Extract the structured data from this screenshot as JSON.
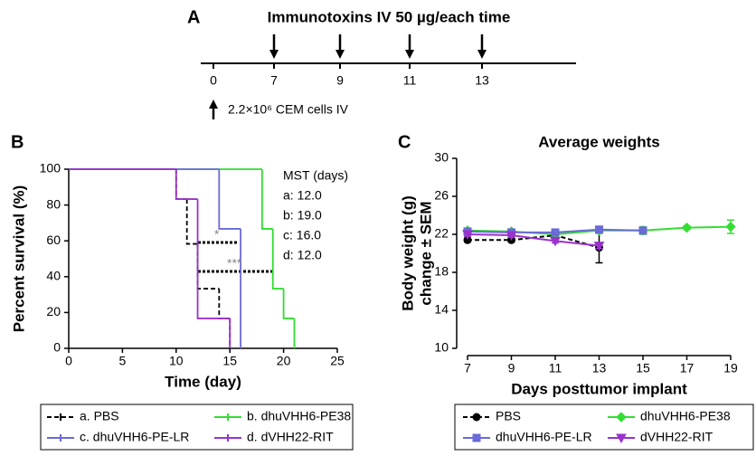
{
  "timeline": {
    "panel_label": "A",
    "title": "Immunotoxins IV 50 µg/each time",
    "days": [
      0,
      7,
      9,
      11,
      13
    ],
    "cells_note": "2.2×10⁶ CEM cells IV"
  },
  "chart_data": [
    {
      "type": "step",
      "panel_label": "B",
      "xlabel": "Time (day)",
      "ylabel": "Percent survival (%)",
      "xlim": [
        0,
        25
      ],
      "xticks": [
        0,
        5,
        10,
        15,
        20,
        25
      ],
      "ylim": [
        0,
        100
      ],
      "yticks": [
        0,
        20,
        40,
        60,
        80,
        100
      ],
      "series": [
        {
          "name": "a. PBS",
          "color": "#000000",
          "linestyle": "dashed",
          "x": [
            0,
            10,
            11,
            12,
            14,
            15
          ],
          "values": [
            100,
            83.3,
            58.3,
            33.3,
            16.7,
            0
          ]
        },
        {
          "name": "b. dhuVHH6-PE38",
          "color": "#33dd33",
          "linestyle": "solid",
          "x": [
            0,
            18,
            19,
            20,
            21
          ],
          "values": [
            100,
            66.7,
            33.3,
            16.7,
            0
          ]
        },
        {
          "name": "c. dhuVHH6-PE-LR",
          "color": "#6a6ad8",
          "linestyle": "solid",
          "x": [
            0,
            14,
            16
          ],
          "values": [
            100,
            66.7,
            0
          ]
        },
        {
          "name": "d. dVHH22-RIT",
          "color": "#9933cc",
          "linestyle": "solid",
          "x": [
            0,
            10,
            12,
            15
          ],
          "values": [
            100,
            83.3,
            16.7,
            0
          ]
        }
      ],
      "mst_title": "MST (days)",
      "mst": [
        "a: 12.0",
        "b: 19.0",
        "c: 16.0",
        "d: 12.0"
      ],
      "significance": [
        "*",
        "***"
      ]
    },
    {
      "type": "line",
      "panel_label": "C",
      "title": "Average weights",
      "xlabel": "Days posttumor implant",
      "ylabel": [
        "Body weight (g)",
        "change ± SEM"
      ],
      "xlim": [
        7,
        19
      ],
      "xticks": [
        7,
        9,
        11,
        13,
        15,
        17,
        19
      ],
      "ylim": [
        10,
        30
      ],
      "yticks": [
        10,
        14,
        18,
        22,
        26,
        30
      ],
      "series": [
        {
          "name": "PBS",
          "color": "#000000",
          "linestyle": "dashed",
          "marker": "circle",
          "x": [
            7,
            9,
            11,
            13
          ],
          "values": [
            21.4,
            21.4,
            21.9,
            20.6
          ],
          "errors": [
            0.2,
            0.2,
            0.3,
            1.6
          ]
        },
        {
          "name": "dhuVHH6-PE38",
          "color": "#33dd33",
          "linestyle": "solid",
          "marker": "diamond",
          "x": [
            7,
            9,
            11,
            13,
            15,
            17,
            19
          ],
          "values": [
            22.4,
            22.3,
            22.0,
            22.4,
            22.4,
            22.7,
            22.8
          ],
          "errors": [
            0.2,
            0.2,
            0.2,
            0.3,
            0.4,
            0.2,
            0.7
          ]
        },
        {
          "name": "dhuVHH6-PE-LR",
          "color": "#6a6ad8",
          "linestyle": "solid",
          "marker": "square",
          "x": [
            7,
            9,
            11,
            13,
            15
          ],
          "values": [
            22.3,
            22.2,
            22.2,
            22.5,
            22.4
          ],
          "errors": [
            0.2,
            0.2,
            0.2,
            0.3,
            0.2
          ]
        },
        {
          "name": "dVHH22-RIT",
          "color": "#9933cc",
          "linestyle": "solid",
          "marker": "triangle",
          "x": [
            7,
            9,
            11,
            13
          ],
          "values": [
            22.0,
            21.9,
            21.3,
            20.8
          ],
          "errors": [
            0.2,
            0.2,
            0.2,
            0.3
          ]
        }
      ]
    }
  ]
}
